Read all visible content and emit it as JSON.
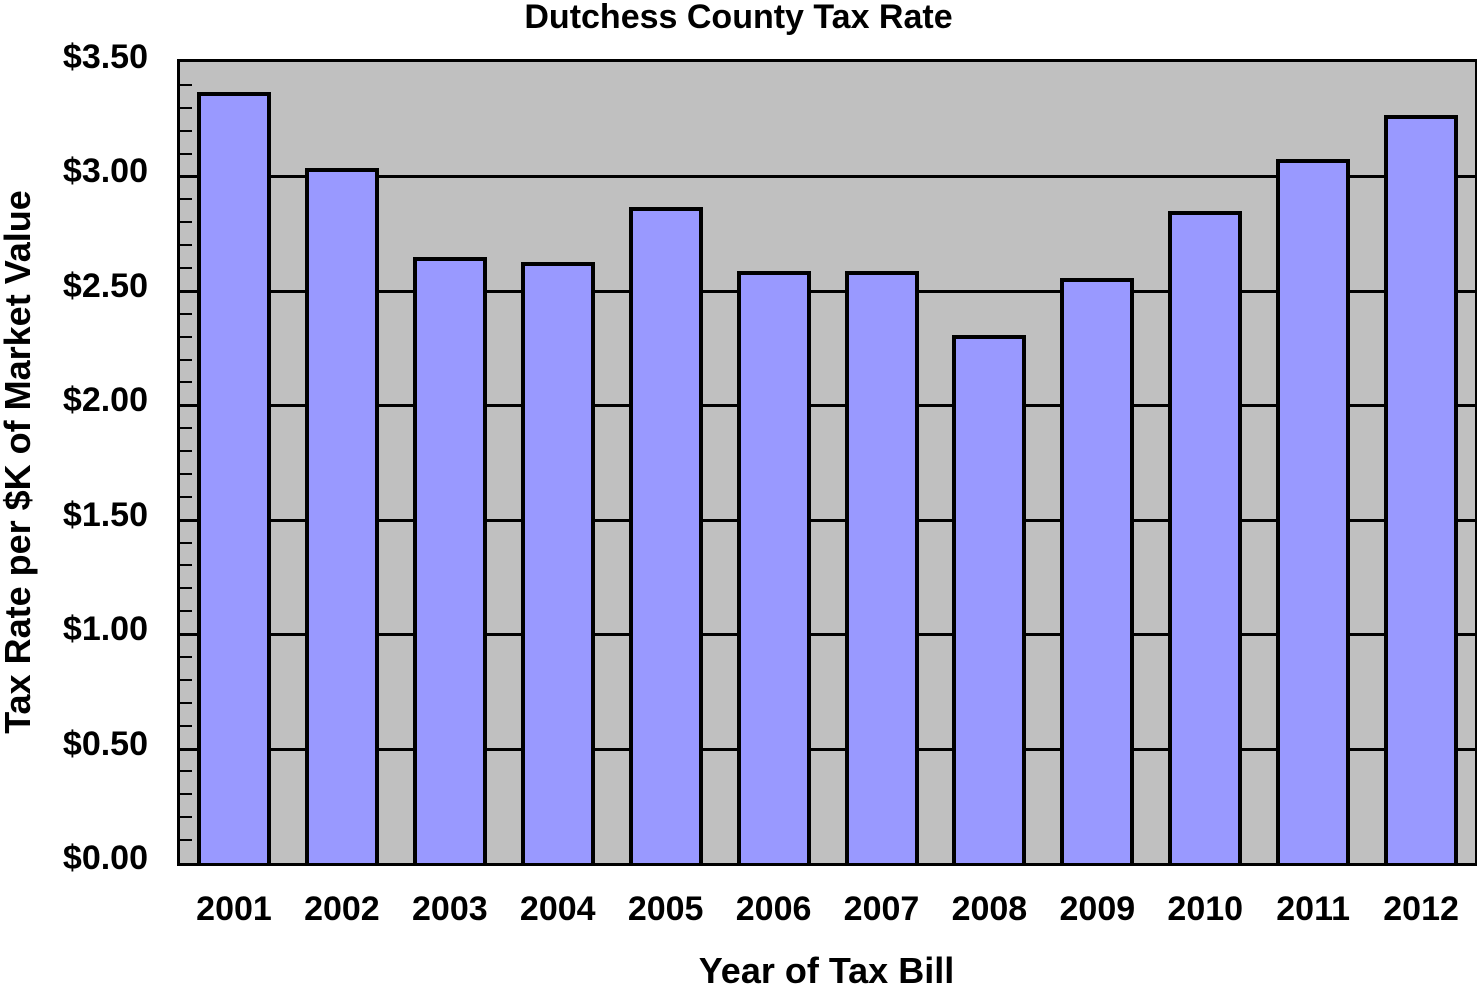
{
  "chart_data": {
    "type": "bar",
    "title": "Dutchess County Tax Rate",
    "xlabel": "Year of Tax Bill",
    "ylabel": "Tax Rate per $K of Market Value",
    "categories": [
      "2001",
      "2002",
      "2003",
      "2004",
      "2005",
      "2006",
      "2007",
      "2008",
      "2009",
      "2010",
      "2011",
      "2012"
    ],
    "values": [
      3.35,
      3.02,
      2.63,
      2.61,
      2.85,
      2.57,
      2.57,
      2.29,
      2.54,
      2.83,
      3.06,
      3.25
    ],
    "ylim": [
      0,
      3.5
    ],
    "yticks": [
      "$0.00",
      "$0.50",
      "$1.00",
      "$1.50",
      "$2.00",
      "$2.50",
      "$3.00",
      "$3.50"
    ],
    "grid": true,
    "legend": null,
    "colors": {
      "bar_fill": "#9999ff",
      "bar_edge": "#000000",
      "plot_bg": "#c0c0c0"
    }
  }
}
